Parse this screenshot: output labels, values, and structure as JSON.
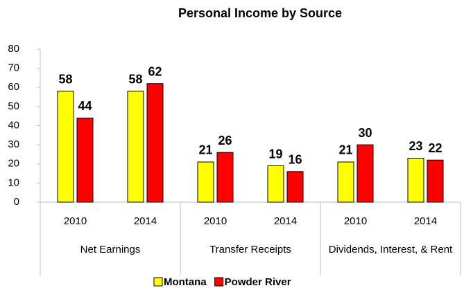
{
  "chart_data": {
    "type": "bar",
    "title": "Personal Income by Source",
    "groups": [
      "Net Earnings",
      "Transfer Receipts",
      "Dividends, Interest, & Rent"
    ],
    "categories": [
      "2010",
      "2014",
      "2010",
      "2014",
      "2010",
      "2014"
    ],
    "series": [
      {
        "name": "Montana",
        "color": "#ffff00",
        "values": [
          58,
          58,
          21,
          19,
          21,
          23
        ]
      },
      {
        "name": "Powder River",
        "color": "#ff0000",
        "values": [
          44,
          62,
          26,
          16,
          30,
          22
        ]
      }
    ],
    "ylim": [
      0,
      80
    ],
    "yticks": [
      0,
      10,
      20,
      30,
      40,
      50,
      60,
      70,
      80
    ],
    "grid": false,
    "legend": "bottom"
  }
}
